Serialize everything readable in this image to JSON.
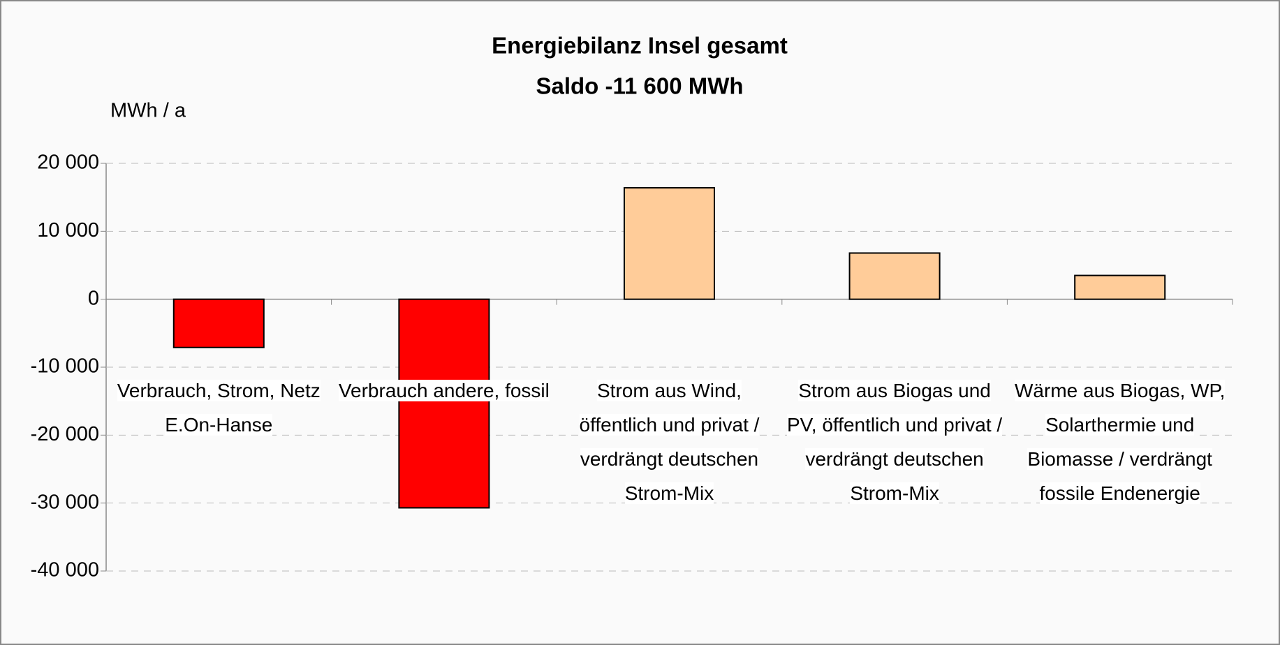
{
  "chart_data": {
    "type": "bar",
    "title": "Energiebilanz Insel gesamt",
    "subtitle": "Saldo -11 600 MWh",
    "y_label": "MWh / a",
    "categories": [
      "Verbrauch, Strom, Netz E.On-Hanse",
      "Verbrauch andere, fossil",
      "Strom aus Wind, öffentlich und privat / verdrängt deutschen Strom-Mix",
      "Strom aus Biogas und PV, öffentlich und privat / verdrängt deutschen Strom-Mix",
      "Wärme aus Biogas, WP, Solarthermie und Biomasse / verdrängt fossile Endenergie"
    ],
    "values": [
      -7100,
      -30700,
      16400,
      6800,
      3500
    ],
    "colors": [
      "#ff0000",
      "#ff0000",
      "#ffcc99",
      "#ffcc99",
      "#ffcc99"
    ],
    "ylim": [
      -40000,
      20000
    ],
    "yticks": [
      {
        "value": -40000,
        "label": "-40 000"
      },
      {
        "value": -30000,
        "label": "-30 000"
      },
      {
        "value": -20000,
        "label": "-20 000"
      },
      {
        "value": -10000,
        "label": "-10 000"
      },
      0,
      {
        "value": 10000,
        "label": "10 000"
      },
      {
        "value": 20000,
        "label": "20 000"
      }
    ],
    "grid": true
  }
}
